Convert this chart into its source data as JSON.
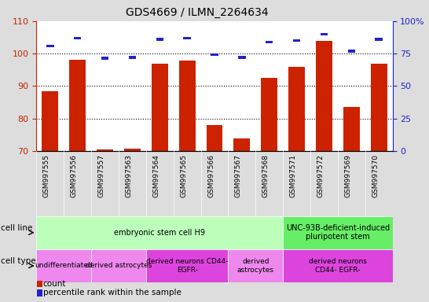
{
  "title": "GDS4669 / ILMN_2264634",
  "samples": [
    "GSM997555",
    "GSM997556",
    "GSM997557",
    "GSM997563",
    "GSM997564",
    "GSM997565",
    "GSM997566",
    "GSM997567",
    "GSM997568",
    "GSM997571",
    "GSM997572",
    "GSM997569",
    "GSM997570"
  ],
  "count_values": [
    88.5,
    98.0,
    70.5,
    70.8,
    97.0,
    97.8,
    78.0,
    73.8,
    92.5,
    95.8,
    104.0,
    83.5,
    96.8
  ],
  "percentile_values": [
    81,
    87,
    71.5,
    72,
    86,
    87,
    74,
    72,
    84,
    85,
    90,
    77,
    86
  ],
  "ylim_left": [
    70,
    110
  ],
  "ylim_right": [
    0,
    100
  ],
  "yticks_left": [
    70,
    80,
    90,
    100,
    110
  ],
  "yticks_right": [
    0,
    25,
    50,
    75,
    100
  ],
  "bar_color": "#CC2200",
  "percentile_color": "#2222CC",
  "background_color": "#DDDDDD",
  "plot_bg": "#FFFFFF",
  "xlabel_bg": "#CCCCCC",
  "cell_line_groups": [
    {
      "label": "embryonic stem cell H9",
      "start": 0,
      "end": 9,
      "color": "#BBFFBB"
    },
    {
      "label": "UNC-93B-deficient-induced\npluripotent stem",
      "start": 9,
      "end": 13,
      "color": "#66EE66"
    }
  ],
  "cell_type_groups": [
    {
      "label": "undifferentiated",
      "start": 0,
      "end": 2,
      "color": "#EE88EE"
    },
    {
      "label": "derived astrocytes",
      "start": 2,
      "end": 4,
      "color": "#EE88EE"
    },
    {
      "label": "derived neurons CD44-\nEGFR-",
      "start": 4,
      "end": 7,
      "color": "#DD44DD"
    },
    {
      "label": "derived\nastrocytes",
      "start": 7,
      "end": 9,
      "color": "#EE88EE"
    },
    {
      "label": "derived neurons\nCD44- EGFR-",
      "start": 9,
      "end": 13,
      "color": "#DD44DD"
    }
  ],
  "legend_items": [
    {
      "label": "count",
      "color": "#CC2200"
    },
    {
      "label": "percentile rank within the sample",
      "color": "#2222CC"
    }
  ]
}
